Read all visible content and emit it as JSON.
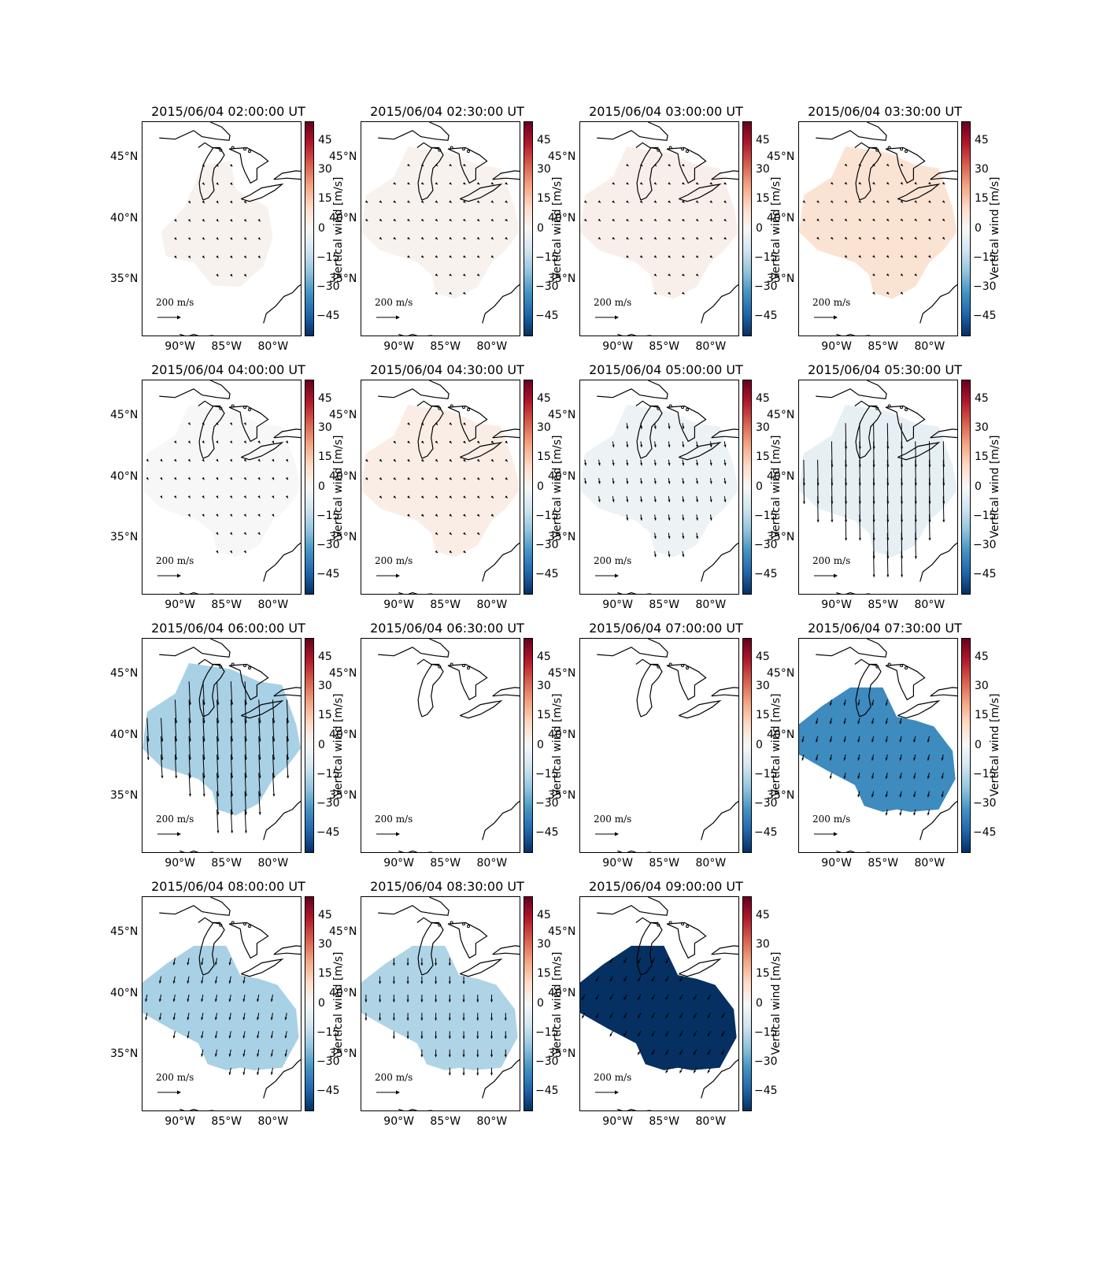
{
  "figure": {
    "colorbar_label": "Vertical wind [m/s]",
    "colorbar_ticks": [
      "45",
      "30",
      "15",
      "0",
      "−15",
      "−30",
      "−45"
    ],
    "colorbar_tick_values": [
      45,
      30,
      15,
      0,
      -15,
      -30,
      -45
    ],
    "colorbar_range": [
      -55,
      55
    ],
    "colormap": [
      "#053061",
      "#2166ac",
      "#4393c3",
      "#92c5de",
      "#d1e5f0",
      "#f7f7f7",
      "#fddbc7",
      "#f4a582",
      "#d6604d",
      "#b2182b",
      "#67001f"
    ],
    "lat_ticks": [
      "45°N",
      "40°N",
      "35°N"
    ],
    "lon_ticks": [
      "90°W",
      "85°W",
      "80°W"
    ],
    "scale_label": "200 m/s",
    "map_extent": {
      "lon": [
        -94,
        -77
      ],
      "lat": [
        30.5,
        48
      ]
    }
  },
  "panels": [
    {
      "title": "2015/06/04 02:00:00 UT",
      "vertical_wind": 2,
      "wind_u": 6,
      "wind_v": -8,
      "extent_region": "central"
    },
    {
      "title": "2015/06/04 02:30:00 UT",
      "vertical_wind": 2,
      "wind_u": 8,
      "wind_v": -6,
      "extent_region": "wide"
    },
    {
      "title": "2015/06/04 03:00:00 UT",
      "vertical_wind": 3,
      "wind_u": 8,
      "wind_v": -6,
      "extent_region": "wide"
    },
    {
      "title": "2015/06/04 03:30:00 UT",
      "vertical_wind": 8,
      "wind_u": 6,
      "wind_v": -6,
      "extent_region": "wide"
    },
    {
      "title": "2015/06/04 04:00:00 UT",
      "vertical_wind": 0,
      "wind_u": 5,
      "wind_v": -8,
      "extent_region": "wide"
    },
    {
      "title": "2015/06/04 04:30:00 UT",
      "vertical_wind": 4,
      "wind_u": 8,
      "wind_v": -8,
      "extent_region": "wide"
    },
    {
      "title": "2015/06/04 05:00:00 UT",
      "vertical_wind": -3,
      "wind_u": 4,
      "wind_v": -25,
      "extent_region": "wide"
    },
    {
      "title": "2015/06/04 05:30:00 UT",
      "vertical_wind": -5,
      "wind_u": 2,
      "wind_v": -110,
      "extent_region": "wide"
    },
    {
      "title": "2015/06/04 06:00:00 UT",
      "vertical_wind": -18,
      "wind_u": 5,
      "wind_v": -100,
      "extent_region": "wide"
    },
    {
      "title": "2015/06/04 06:30:00 UT",
      "vertical_wind": null,
      "wind_u": 0,
      "wind_v": 0,
      "extent_region": "none"
    },
    {
      "title": "2015/06/04 07:00:00 UT",
      "vertical_wind": null,
      "wind_u": 0,
      "wind_v": 0,
      "extent_region": "none"
    },
    {
      "title": "2015/06/04 07:30:00 UT",
      "vertical_wind": -35,
      "wind_u": -6,
      "wind_v": -25,
      "extent_region": "south"
    },
    {
      "title": "2015/06/04 08:00:00 UT",
      "vertical_wind": -18,
      "wind_u": -6,
      "wind_v": -30,
      "extent_region": "south"
    },
    {
      "title": "2015/06/04 08:30:00 UT",
      "vertical_wind": -17,
      "wind_u": 0,
      "wind_v": -32,
      "extent_region": "south"
    },
    {
      "title": "2015/06/04 09:00:00 UT",
      "vertical_wind": -55,
      "wind_u": -12,
      "wind_v": -22,
      "extent_region": "south"
    }
  ]
}
